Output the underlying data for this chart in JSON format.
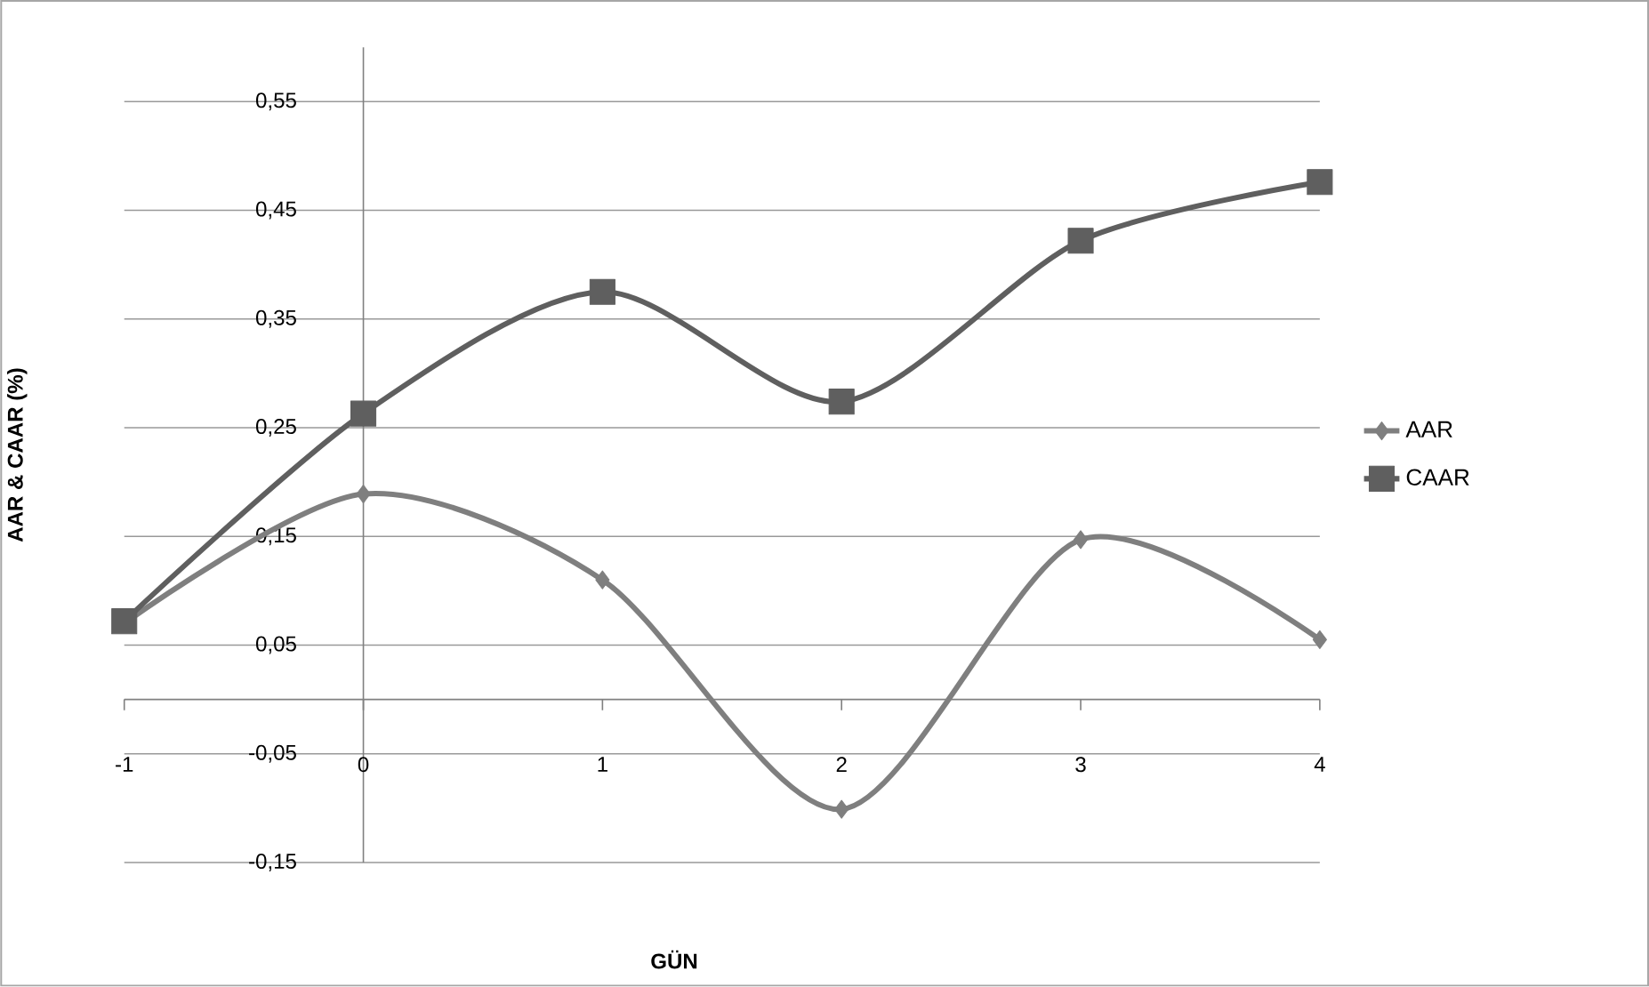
{
  "chart_data": {
    "type": "line",
    "xlabel": "GÜN",
    "ylabel": "AAR & CAAR (%)",
    "x": [
      -1,
      0,
      1,
      2,
      3,
      4
    ],
    "series": [
      {
        "name": "AAR",
        "color": "#7f7f7f",
        "marker": "diamond",
        "values": [
          0.07,
          0.189,
          0.11,
          -0.101,
          0.147,
          0.055
        ]
      },
      {
        "name": "CAAR",
        "color": "#5f5f5f",
        "marker": "square",
        "values": [
          0.072,
          0.263,
          0.375,
          0.274,
          0.422,
          0.476
        ]
      }
    ],
    "xlim": [
      -1,
      4
    ],
    "xticks": [
      -1,
      0,
      1,
      2,
      3,
      4
    ],
    "ylim": [
      -0.15,
      0.6
    ],
    "yticks": [
      {
        "value": -0.15,
        "label": "-0,15"
      },
      {
        "value": -0.05,
        "label": "-0,05"
      },
      {
        "value": 0.05,
        "label": "0,05"
      },
      {
        "value": 0.15,
        "label": "0,15"
      },
      {
        "value": 0.25,
        "label": "0,25"
      },
      {
        "value": 0.35,
        "label": "0,35"
      },
      {
        "value": 0.45,
        "label": "0,45"
      },
      {
        "value": 0.55,
        "label": "0,55"
      }
    ],
    "grid": "y",
    "legend": "right"
  }
}
